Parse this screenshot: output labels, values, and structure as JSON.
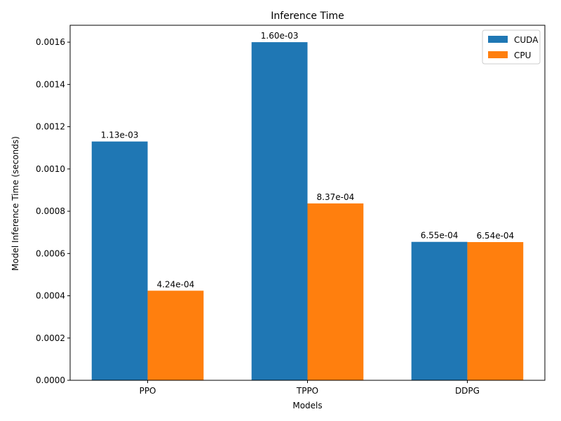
{
  "chart_data": {
    "type": "bar",
    "title": "Inference Time",
    "xlabel": "Models",
    "ylabel": "Model Inference Time (seconds)",
    "categories": [
      "PPO",
      "TPPO",
      "DDPG"
    ],
    "series": [
      {
        "name": "CUDA",
        "color": "#1f77b4",
        "values": [
          0.00113,
          0.0016,
          0.000655
        ],
        "labels": [
          "1.13e-03",
          "1.60e-03",
          "6.55e-04"
        ]
      },
      {
        "name": "CPU",
        "color": "#ff7f0e",
        "values": [
          0.000424,
          0.000837,
          0.000654
        ],
        "labels": [
          "4.24e-04",
          "8.37e-04",
          "6.54e-04"
        ]
      }
    ],
    "ylim": [
      0,
      0.00168
    ],
    "yticks": [
      0.0,
      0.0002,
      0.0004,
      0.0006,
      0.0008,
      0.001,
      0.0012,
      0.0014,
      0.0016
    ],
    "ytick_labels": [
      "0.0000",
      "0.0002",
      "0.0004",
      "0.0006",
      "0.0008",
      "0.0010",
      "0.0012",
      "0.0014",
      "0.0016"
    ],
    "grid": false,
    "legend_position": "top-right"
  }
}
